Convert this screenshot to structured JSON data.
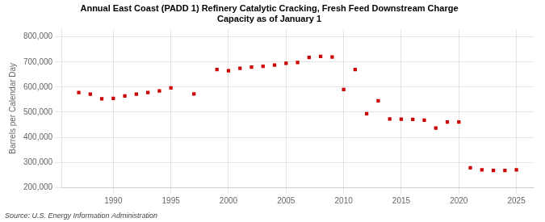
{
  "chart_data": {
    "type": "scatter",
    "title": "Annual East Coast (PADD 1) Refinery Catalytic Cracking, Fresh Feed Downstream Charge\nCapacity as of January 1",
    "ylabel": "Barrels per Calendar Day",
    "source": "Source: U.S. Energy Information Administration",
    "x": [
      1987,
      1988,
      1989,
      1990,
      1991,
      1992,
      1993,
      1994,
      1995,
      1997,
      1999,
      2000,
      2001,
      2002,
      2003,
      2004,
      2005,
      2006,
      2007,
      2008,
      2009,
      2010,
      2011,
      2012,
      2013,
      2014,
      2015,
      2016,
      2017,
      2018,
      2019,
      2020,
      2021,
      2022,
      2023,
      2024,
      2025
    ],
    "values": [
      578000,
      572000,
      553000,
      555000,
      565000,
      572000,
      578000,
      585000,
      597000,
      573000,
      670000,
      665000,
      675000,
      680000,
      683000,
      688000,
      695000,
      698000,
      718000,
      722000,
      720000,
      590000,
      670000,
      494000,
      545000,
      473000,
      472000,
      471000,
      468000,
      437000,
      461000,
      461000,
      278000,
      270000,
      268000,
      268000,
      270000
    ],
    "color": "#cc0000",
    "marker": "square",
    "xlim": [
      1985.5,
      2026.5
    ],
    "xticks": [
      1990,
      1995,
      2000,
      2005,
      2010,
      2015,
      2020,
      2025
    ],
    "ylim": [
      200000,
      830000
    ],
    "yticks": [
      {
        "value": 200000,
        "label": "200,000"
      },
      {
        "value": 300000,
        "label": "300,000"
      },
      {
        "value": 400000,
        "label": "400,000"
      },
      {
        "value": 500000,
        "label": "500,000"
      },
      {
        "value": 600000,
        "label": "600,000"
      },
      {
        "value": 700000,
        "label": "700,000"
      },
      {
        "value": 800000,
        "label": "800,000"
      }
    ],
    "grid": true
  }
}
